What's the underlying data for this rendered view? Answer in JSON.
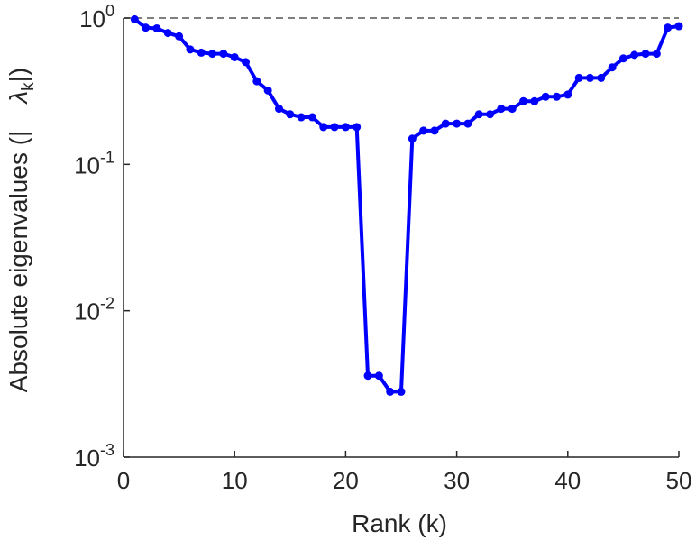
{
  "chart_data": {
    "type": "line",
    "title": "",
    "xlabel": "Rank (k)",
    "ylabel": "Absolute eigenvalues (|     λk|)",
    "ylabel_parts": {
      "prefix": "Absolute eigenvalues (|",
      "symbol": "λ",
      "subscript": "k",
      "suffix": "|)"
    },
    "xlim": [
      0,
      50
    ],
    "ylim": [
      0.001,
      1
    ],
    "yscale": "log",
    "grid": false,
    "legend": "none",
    "xticks": [
      {
        "value": 0,
        "label": "0"
      },
      {
        "value": 10,
        "label": "10"
      },
      {
        "value": 20,
        "label": "20"
      },
      {
        "value": 30,
        "label": "30"
      },
      {
        "value": 40,
        "label": "40"
      },
      {
        "value": 50,
        "label": "50"
      }
    ],
    "yticks": [
      {
        "value": 0.001,
        "base": "10",
        "exp": "-3"
      },
      {
        "value": 0.01,
        "base": "10",
        "exp": "-2"
      },
      {
        "value": 0.1,
        "base": "10",
        "exp": "-1"
      },
      {
        "value": 1,
        "base": "10",
        "exp": "0"
      }
    ],
    "reference_line": {
      "y": 1,
      "style": "dashed",
      "color": "#555555"
    },
    "series": [
      {
        "color": "#0000ff",
        "x": [
          1,
          2,
          3,
          4,
          5,
          6,
          7,
          8,
          9,
          10,
          11,
          12,
          13,
          14,
          15,
          16,
          17,
          18,
          19,
          20,
          21,
          22,
          23,
          24,
          25,
          26,
          27,
          28,
          29,
          30,
          31,
          32,
          33,
          34,
          35,
          36,
          37,
          38,
          39,
          40,
          41,
          42,
          43,
          44,
          45,
          46,
          47,
          48,
          49,
          50
        ],
        "y": [
          0.98,
          0.86,
          0.85,
          0.79,
          0.75,
          0.61,
          0.58,
          0.57,
          0.57,
          0.54,
          0.5,
          0.37,
          0.32,
          0.24,
          0.22,
          0.21,
          0.21,
          0.18,
          0.18,
          0.18,
          0.18,
          0.0036,
          0.0036,
          0.0028,
          0.0028,
          0.15,
          0.17,
          0.17,
          0.19,
          0.19,
          0.19,
          0.22,
          0.22,
          0.24,
          0.24,
          0.27,
          0.27,
          0.29,
          0.29,
          0.3,
          0.39,
          0.39,
          0.39,
          0.46,
          0.53,
          0.56,
          0.57,
          0.57,
          0.86,
          0.88
        ]
      }
    ]
  }
}
